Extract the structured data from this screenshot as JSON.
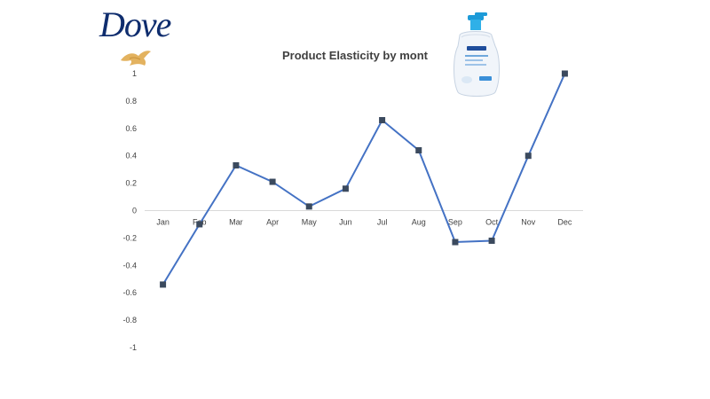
{
  "brand": {
    "logo_text": "Dove"
  },
  "colors": {
    "line": "#4472C4",
    "marker": "#3B4A5E",
    "axis": "#D9D9D9",
    "brand": "#0F2D6E"
  },
  "chart_data": {
    "type": "line",
    "title": "Product Elasticity by mont",
    "categories": [
      "Jan",
      "Feb",
      "Mar",
      "Apr",
      "May",
      "Jun",
      "Jul",
      "Aug",
      "Sep",
      "Oct",
      "Nov",
      "Dec"
    ],
    "series": [
      {
        "values": [
          -0.54,
          -0.1,
          0.33,
          0.21,
          0.03,
          0.16,
          0.66,
          0.44,
          -0.23,
          -0.22,
          0.4,
          1.0
        ]
      }
    ],
    "ylim": [
      -1,
      1
    ],
    "yticks": [
      "1",
      "0.8",
      "0.6",
      "0.4",
      "0.2",
      "0",
      "-0.2",
      "-0.4",
      "-0.6",
      "-0.8",
      "-1"
    ],
    "grid": false,
    "legend": "none"
  }
}
